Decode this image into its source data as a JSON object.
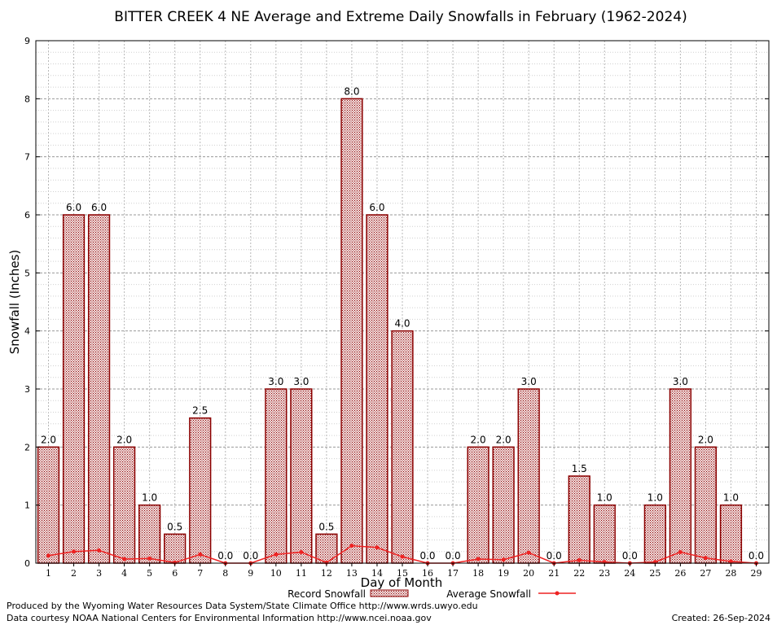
{
  "chart_data": {
    "type": "bar",
    "title": "BITTER CREEK 4 NE Average and Extreme Daily Snowfalls in February (1962-2024)",
    "xlabel": "Day of Month",
    "ylabel": "Snowfall (Inches)",
    "ylim": [
      0,
      9
    ],
    "y_ticks": [
      "0",
      "1",
      "2",
      "3",
      "4",
      "5",
      "6",
      "7",
      "8",
      "9"
    ],
    "grid": true,
    "legend_position": "bottom-center",
    "categories": [
      "1",
      "2",
      "3",
      "4",
      "5",
      "6",
      "7",
      "8",
      "9",
      "10",
      "11",
      "12",
      "13",
      "14",
      "15",
      "16",
      "17",
      "18",
      "19",
      "20",
      "21",
      "22",
      "23",
      "24",
      "25",
      "26",
      "27",
      "28",
      "29"
    ],
    "series": [
      {
        "name": "Record Snowfall",
        "type": "bar",
        "color": "#8b0000",
        "values": [
          2.0,
          6.0,
          6.0,
          2.0,
          1.0,
          0.5,
          2.5,
          0.0,
          0.0,
          3.0,
          3.0,
          0.5,
          8.0,
          6.0,
          4.0,
          0.0,
          0.0,
          2.0,
          2.0,
          3.0,
          0.0,
          1.5,
          1.0,
          0.0,
          1.0,
          3.0,
          2.0,
          1.0,
          0.0
        ],
        "labels": [
          "2.0",
          "6.0",
          "6.0",
          "2.0",
          "1.0",
          "0.5",
          "2.5",
          "0.0",
          "0.0",
          "3.0",
          "3.0",
          "0.5",
          "8.0",
          "6.0",
          "4.0",
          "0.0",
          "0.0",
          "2.0",
          "2.0",
          "3.0",
          "0.0",
          "1.5",
          "1.0",
          "0.0",
          "1.0",
          "3.0",
          "2.0",
          "1.0",
          "0.0"
        ]
      },
      {
        "name": "Average Snowfall",
        "type": "line",
        "color": "#ee2222",
        "values": [
          0.13,
          0.2,
          0.22,
          0.07,
          0.08,
          0.01,
          0.15,
          0.0,
          0.0,
          0.15,
          0.19,
          0.01,
          0.3,
          0.27,
          0.11,
          0.0,
          0.0,
          0.07,
          0.06,
          0.18,
          0.0,
          0.05,
          0.02,
          0.0,
          0.02,
          0.19,
          0.09,
          0.03,
          0.0
        ]
      }
    ]
  },
  "footer": {
    "credit_line1": "Produced by the Wyoming Water Resources Data System/State Climate Office http://www.wrds.uwyo.edu",
    "credit_line2": "Data courtesy NOAA National Centers for Environmental Information http://www.ncei.noaa.gov",
    "created": "Created:  26-Sep-2024"
  }
}
